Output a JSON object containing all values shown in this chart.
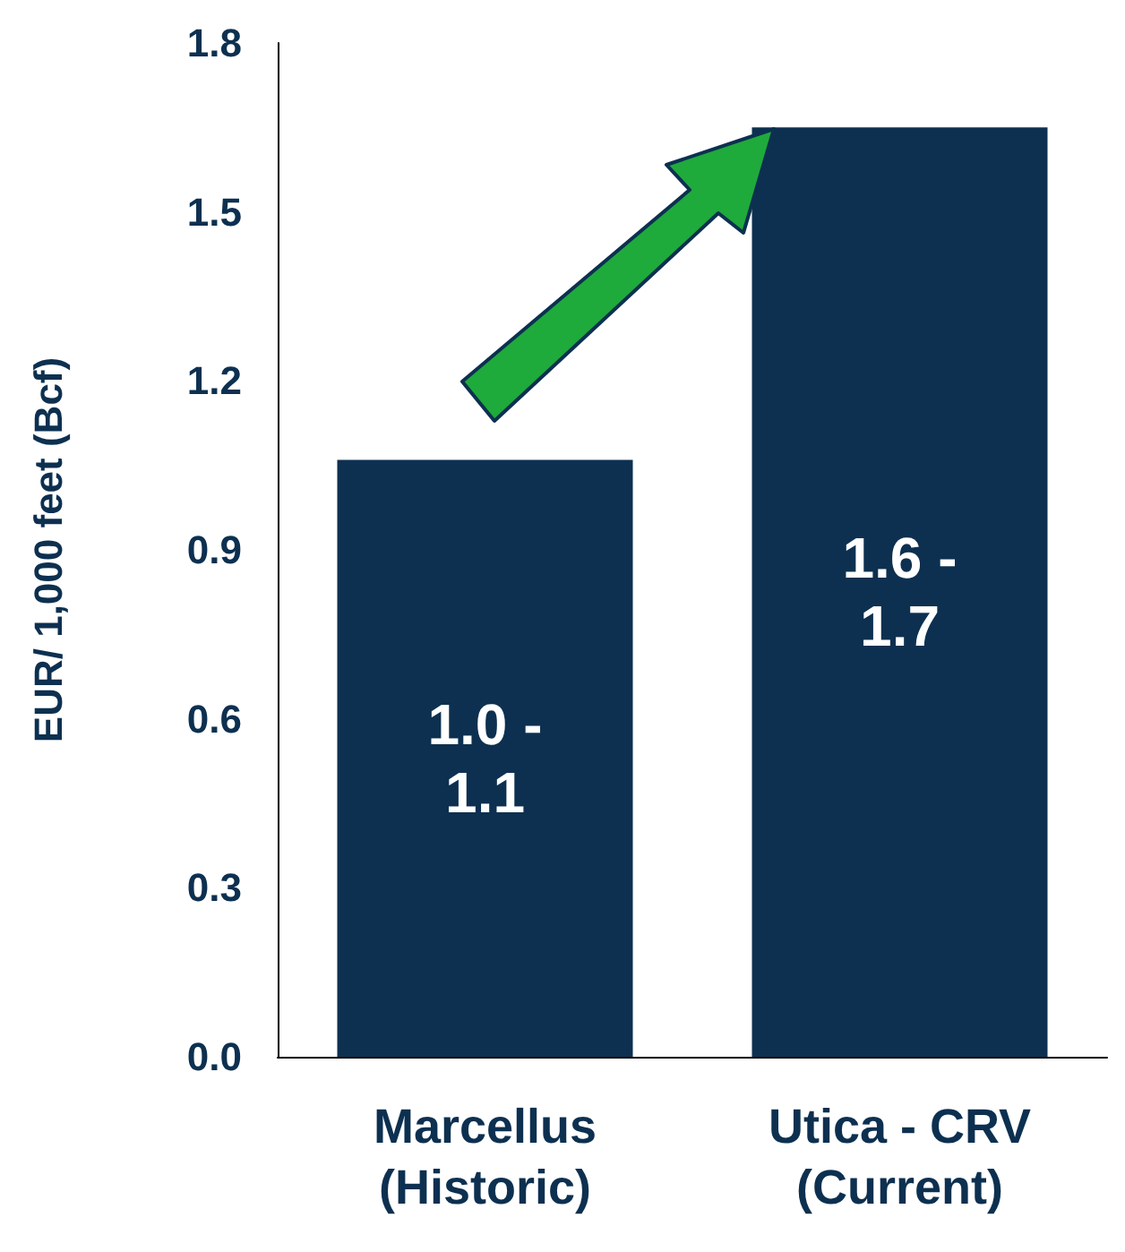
{
  "chart_data": {
    "type": "bar",
    "ylabel": "EUR/ 1,000 feet (Bcf)",
    "categories": [
      "Marcellus\n(Historic)",
      "Utica - CRV\n(Current)"
    ],
    "values": [
      1.06,
      1.65
    ],
    "color": "#0d3050",
    "value_labels": [
      "1.0 -\n1.1",
      "1.6 -\n1.7"
    ],
    "ylim": [
      0,
      1.8
    ],
    "yticks": [
      {
        "value": 0,
        "label": "0.0"
      },
      0.3,
      0.6,
      0.9,
      1.2,
      1.5,
      1.8
    ],
    "grid": false
  }
}
